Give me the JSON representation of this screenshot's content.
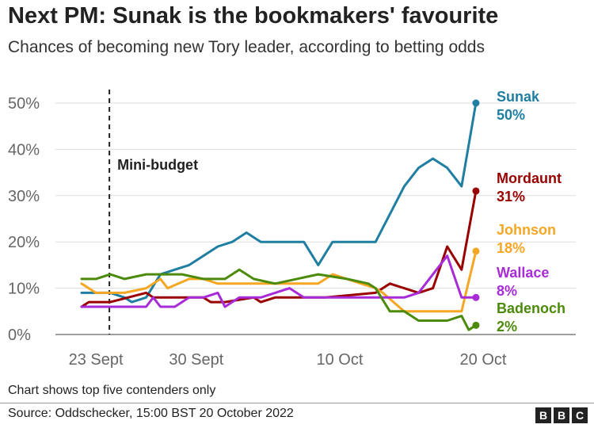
{
  "title": "Next PM: Sunak is the bookmakers' favourite",
  "subtitle": "Chances of becoming new Tory leader, according to betting odds",
  "note": "Chart shows top five contenders only",
  "source": "Source: Oddschecker, 15:00 BST 20 October 2022",
  "logo": [
    "B",
    "B",
    "C"
  ],
  "chart_data": {
    "type": "line",
    "ylim": [
      0,
      50
    ],
    "yticks": [
      0,
      10,
      20,
      30,
      40,
      50
    ],
    "ytick_labels": [
      "0%",
      "10%",
      "20%",
      "30%",
      "40%",
      "50%"
    ],
    "xlim": [
      0,
      28
    ],
    "xticks": [
      {
        "x": 1,
        "label": "23 Sept"
      },
      {
        "x": 8,
        "label": "30 Sept"
      },
      {
        "x": 18,
        "label": "10 Oct"
      },
      {
        "x": 28,
        "label": "20 Oct"
      }
    ],
    "annotation": {
      "x": 1,
      "label": "Mini-budget"
    },
    "series": [
      {
        "name": "Sunak",
        "end_label": "50%",
        "color": "#1f7ea1",
        "points": [
          [
            0,
            9
          ],
          [
            2,
            9
          ],
          [
            3,
            8
          ],
          [
            3.5,
            7
          ],
          [
            4.5,
            8
          ],
          [
            5.5,
            13
          ],
          [
            6.5,
            14
          ],
          [
            7.5,
            15
          ],
          [
            9.5,
            19
          ],
          [
            10.5,
            20
          ],
          [
            11.5,
            22
          ],
          [
            12.5,
            20
          ],
          [
            15.5,
            20
          ],
          [
            16.5,
            15
          ],
          [
            17.5,
            20
          ],
          [
            19.5,
            20
          ],
          [
            20.5,
            20
          ],
          [
            22.5,
            32
          ],
          [
            23.5,
            36
          ],
          [
            24.5,
            38
          ],
          [
            25.5,
            36
          ],
          [
            26.5,
            32
          ],
          [
            27.5,
            50
          ]
        ]
      },
      {
        "name": "Mordaunt",
        "end_label": "31%",
        "color": "#990000",
        "points": [
          [
            0,
            6
          ],
          [
            0.5,
            7
          ],
          [
            2,
            7
          ],
          [
            4.5,
            9
          ],
          [
            5,
            8
          ],
          [
            8.5,
            8
          ],
          [
            9,
            7
          ],
          [
            10,
            7
          ],
          [
            12,
            8
          ],
          [
            12.5,
            7
          ],
          [
            13.5,
            8
          ],
          [
            17,
            8
          ],
          [
            20.5,
            9
          ],
          [
            21.5,
            11
          ],
          [
            22.5,
            10
          ],
          [
            23.5,
            9
          ],
          [
            24.5,
            10
          ],
          [
            25.5,
            19
          ],
          [
            26.5,
            14
          ],
          [
            27.5,
            31
          ]
        ]
      },
      {
        "name": "Johnson",
        "end_label": "18%",
        "color": "#f5a623",
        "points": [
          [
            0,
            11
          ],
          [
            1,
            9
          ],
          [
            3,
            9
          ],
          [
            4.5,
            10
          ],
          [
            5.5,
            12
          ],
          [
            6,
            10
          ],
          [
            7.5,
            12
          ],
          [
            8.5,
            12
          ],
          [
            9.5,
            11
          ],
          [
            12.5,
            11
          ],
          [
            16.5,
            11
          ],
          [
            17.5,
            13
          ],
          [
            19.5,
            11
          ],
          [
            20.5,
            10
          ],
          [
            21,
            9
          ],
          [
            22.5,
            5
          ],
          [
            26.5,
            5
          ],
          [
            27.5,
            18
          ]
        ]
      },
      {
        "name": "Wallace",
        "end_label": "8%",
        "color": "#a82bd8",
        "points": [
          [
            0,
            6
          ],
          [
            2,
            6
          ],
          [
            4.5,
            6
          ],
          [
            5,
            8
          ],
          [
            5.5,
            6
          ],
          [
            6.5,
            6
          ],
          [
            7.5,
            8
          ],
          [
            8.5,
            8
          ],
          [
            9.5,
            9
          ],
          [
            10,
            6
          ],
          [
            11,
            8
          ],
          [
            12.5,
            8
          ],
          [
            14.5,
            10
          ],
          [
            15.5,
            8
          ],
          [
            20.5,
            8
          ],
          [
            22.5,
            8
          ],
          [
            23.5,
            9
          ],
          [
            25.5,
            17
          ],
          [
            26.5,
            8
          ],
          [
            27.5,
            8
          ]
        ]
      },
      {
        "name": "Badenoch",
        "end_label": "2%",
        "color": "#4b8a0a",
        "points": [
          [
            0,
            12
          ],
          [
            1,
            12
          ],
          [
            2,
            13
          ],
          [
            3,
            12
          ],
          [
            4.5,
            13
          ],
          [
            7,
            13
          ],
          [
            8.5,
            12
          ],
          [
            10,
            12
          ],
          [
            11,
            14
          ],
          [
            12,
            12
          ],
          [
            13.5,
            11
          ],
          [
            16.5,
            13
          ],
          [
            18.5,
            12
          ],
          [
            20,
            11
          ],
          [
            20.5,
            10
          ],
          [
            21.5,
            5
          ],
          [
            22.5,
            5
          ],
          [
            23.5,
            3
          ],
          [
            25.5,
            3
          ],
          [
            26.5,
            4
          ],
          [
            27,
            1
          ],
          [
            27.5,
            2
          ]
        ]
      }
    ]
  }
}
